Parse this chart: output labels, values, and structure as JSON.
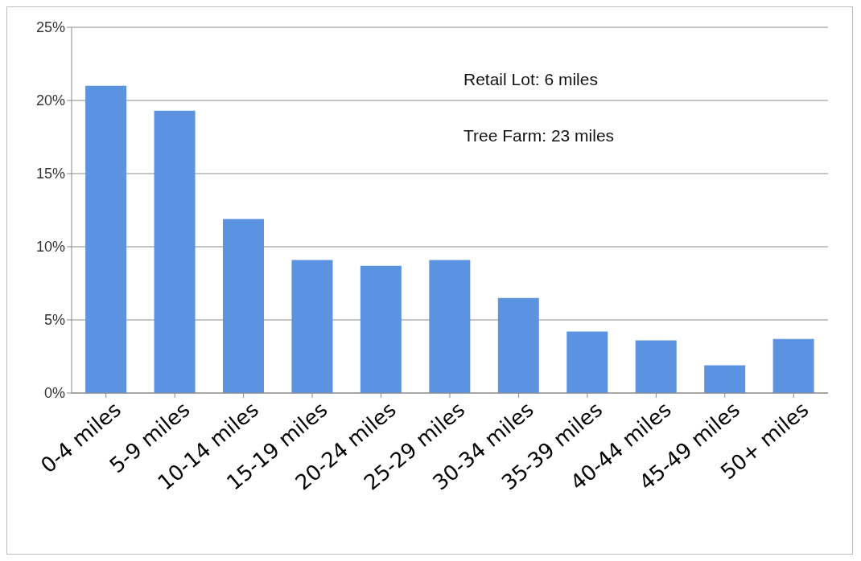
{
  "chart_data": {
    "type": "bar",
    "categories": [
      "0-4 miles",
      "5-9 miles",
      "10-14 miles",
      "15-19 miles",
      "20-24 miles",
      "25-29 miles",
      "30-34 miles",
      "35-39 miles",
      "40-44 miles",
      "45-49 miles",
      "50+ miles"
    ],
    "values": [
      21.0,
      19.3,
      11.9,
      9.1,
      8.7,
      9.1,
      6.5,
      4.2,
      3.6,
      1.9,
      3.7
    ],
    "color": "#5b93e0",
    "ylim": [
      0,
      25
    ],
    "yticks": [
      {
        "value": 0,
        "label": "0%"
      },
      {
        "value": 5,
        "label": "5%"
      },
      {
        "value": 10,
        "label": "10%"
      },
      {
        "value": 15,
        "label": "15%"
      },
      {
        "value": 20,
        "label": "20%"
      },
      {
        "value": 25,
        "label": "25%"
      }
    ],
    "grid": "y",
    "annotations": [
      "Retail Lot: 6 miles",
      "Tree Farm: 23 miles"
    ]
  }
}
